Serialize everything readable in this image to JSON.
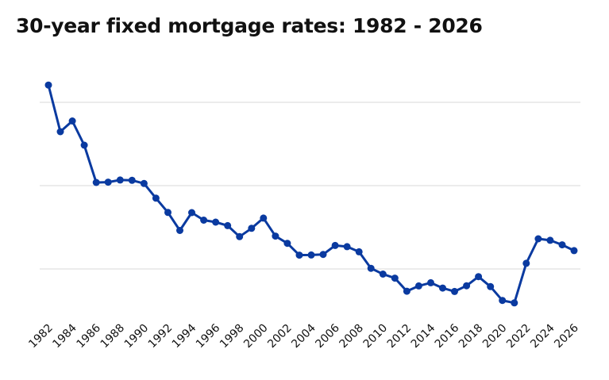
{
  "colors": {
    "series": "#0a3aa0",
    "grid": "#d9d9d9",
    "title": "#111111",
    "background": "#ffffff"
  },
  "chart_data": {
    "type": "line",
    "title": "30-year fixed mortgage rates: 1982 - 2026",
    "xlabel": "",
    "ylabel": "",
    "grid": true,
    "y_tick_labels_shown": false,
    "x_tick_labels": [
      "1982",
      "1984",
      "1986",
      "1988",
      "1990",
      "1992",
      "1994",
      "1996",
      "1998",
      "2000",
      "2002",
      "2004",
      "2006",
      "2008",
      "2010",
      "2012",
      "2014",
      "2016",
      "2018",
      "2020",
      "2022",
      "2024",
      "2026"
    ],
    "x": [
      1982,
      1983,
      1984,
      1985,
      1986,
      1987,
      1988,
      1989,
      1990,
      1991,
      1992,
      1993,
      1994,
      1995,
      1996,
      1997,
      1998,
      1999,
      2000,
      2001,
      2002,
      2003,
      2004,
      2005,
      2006,
      2007,
      2008,
      2009,
      2010,
      2011,
      2012,
      2013,
      2014,
      2015,
      2016,
      2017,
      2018,
      2019,
      2020,
      2021,
      2022,
      2023,
      2024,
      2025,
      2026
    ],
    "series": [
      {
        "values": [
          16.04,
          13.24,
          13.88,
          12.43,
          10.19,
          10.21,
          10.34,
          10.32,
          10.13,
          9.25,
          8.39,
          7.31,
          8.38,
          7.93,
          7.81,
          7.6,
          6.94,
          7.44,
          8.05,
          6.97,
          6.54,
          5.83,
          5.84,
          5.87,
          6.41,
          6.34,
          6.03,
          5.04,
          4.69,
          4.45,
          3.66,
          3.98,
          4.17,
          3.85,
          3.65,
          3.99,
          4.54,
          3.94,
          3.11,
          2.96,
          5.34,
          6.81,
          6.72,
          6.45,
          6.1
        ]
      }
    ]
  }
}
